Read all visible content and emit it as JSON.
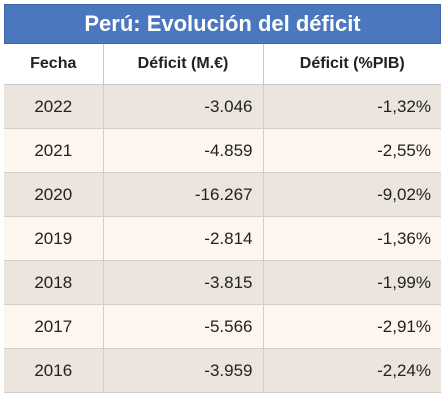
{
  "title": "Perú: Evolución del déficit",
  "headers": [
    "Fecha",
    "Déficit (M.€)",
    "Déficit (%PIB)"
  ],
  "rows": [
    {
      "fecha": "2022",
      "deficit_m": "-3.046",
      "deficit_pib": "-1,32%"
    },
    {
      "fecha": "2021",
      "deficit_m": "-4.859",
      "deficit_pib": "-2,55%"
    },
    {
      "fecha": "2020",
      "deficit_m": "-16.267",
      "deficit_pib": "-9,02%"
    },
    {
      "fecha": "2019",
      "deficit_m": "-2.814",
      "deficit_pib": "-1,36%"
    },
    {
      "fecha": "2018",
      "deficit_m": "-3.815",
      "deficit_pib": "-1,99%"
    },
    {
      "fecha": "2017",
      "deficit_m": "-5.566",
      "deficit_pib": "-2,91%"
    },
    {
      "fecha": "2016",
      "deficit_m": "-3.959",
      "deficit_pib": "-2,24%"
    }
  ]
}
